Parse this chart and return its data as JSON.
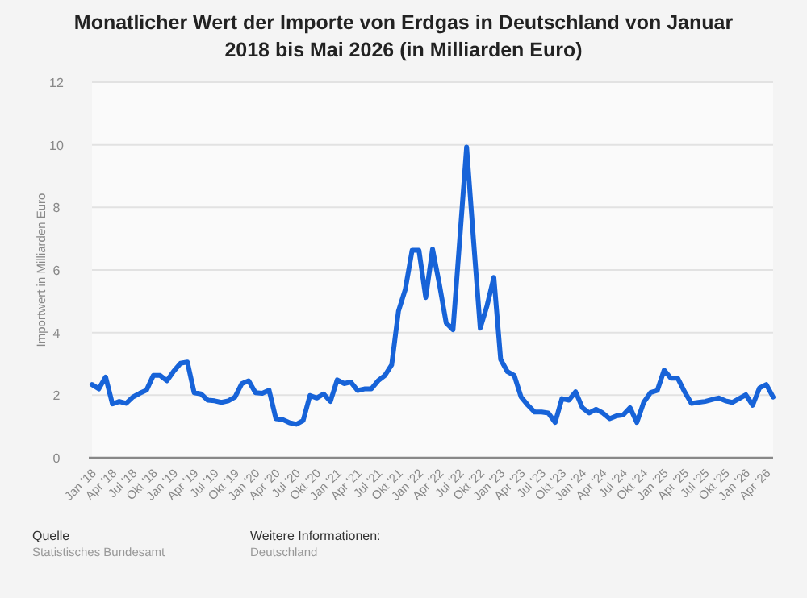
{
  "chart_data": {
    "type": "line",
    "title": "Monatlicher Wert der Importe von Erdgas in Deutschland von Januar 2018 bis Mai 2026 (in Milliarden Euro)",
    "ylabel": "Importwert in Milliarden Euro",
    "categories": [
      "Jan '18",
      null,
      null,
      "Apr '18",
      null,
      null,
      "Jul '18",
      null,
      null,
      "Okt '18",
      null,
      null,
      "Jan '19",
      null,
      null,
      "Apr '19",
      null,
      null,
      "Jul '19",
      null,
      null,
      "Okt '19",
      null,
      null,
      "Jan '20",
      null,
      null,
      "Apr '20",
      null,
      null,
      "Jul '20",
      null,
      null,
      "Okt '20",
      null,
      null,
      "Jan '21",
      null,
      null,
      "Apr '21",
      null,
      null,
      "Jul '21",
      null,
      null,
      "Okt '21",
      null,
      null,
      "Jan '22",
      null,
      null,
      "Apr '22",
      null,
      null,
      "Jul '22",
      null,
      null,
      "Okt '22",
      null,
      null,
      "Jan '23",
      null,
      null,
      "Apr '23",
      null,
      null,
      "Jul '23",
      null,
      null,
      "Okt '23",
      null,
      null,
      "Jan '24",
      null,
      null,
      "Apr '24",
      null,
      null,
      "Jul '24",
      null,
      null,
      "Okt '24",
      null,
      null,
      "Jan '25",
      null,
      null,
      "Apr '25",
      null,
      null,
      "Jul '25",
      null,
      null,
      "Okt '25",
      null,
      null,
      "Jan '26",
      null,
      null,
      "Apr '26",
      null
    ],
    "series": [
      {
        "color": "#1763d8",
        "values": [
          2.34,
          2.2,
          2.58,
          1.72,
          1.8,
          1.74,
          1.94,
          2.06,
          2.16,
          2.63,
          2.63,
          2.46,
          2.77,
          3.02,
          3.06,
          2.08,
          2.04,
          1.84,
          1.82,
          1.77,
          1.82,
          1.94,
          2.37,
          2.46,
          2.08,
          2.06,
          2.16,
          1.25,
          1.22,
          1.12,
          1.07,
          1.19,
          1.99,
          1.91,
          2.04,
          1.8,
          2.49,
          2.37,
          2.42,
          2.15,
          2.2,
          2.2,
          2.46,
          2.63,
          2.97,
          4.69,
          5.38,
          6.63,
          6.63,
          5.12,
          6.67,
          5.55,
          4.31,
          4.09,
          7.0,
          9.93,
          7.0,
          4.14,
          4.86,
          5.76,
          3.14,
          2.75,
          2.63,
          1.94,
          1.68,
          1.46,
          1.46,
          1.43,
          1.13,
          1.89,
          1.84,
          2.11,
          1.6,
          1.43,
          1.55,
          1.43,
          1.25,
          1.34,
          1.37,
          1.6,
          1.13,
          1.77,
          2.08,
          2.15,
          2.8,
          2.54,
          2.54,
          2.11,
          1.74,
          1.77,
          1.8,
          1.86,
          1.91,
          1.82,
          1.77,
          1.89,
          2.01,
          1.68,
          2.23,
          2.34,
          1.94
        ]
      }
    ],
    "ylim": [
      0,
      12
    ],
    "yticks": [
      0,
      2,
      4,
      6,
      8,
      10,
      12
    ],
    "grid": "y",
    "marker": "none",
    "line_style": "solid",
    "annotations": [
      "Quelle",
      "Statistisches Bundesamt",
      "Weitere Informationen:",
      "Deutschland"
    ]
  }
}
